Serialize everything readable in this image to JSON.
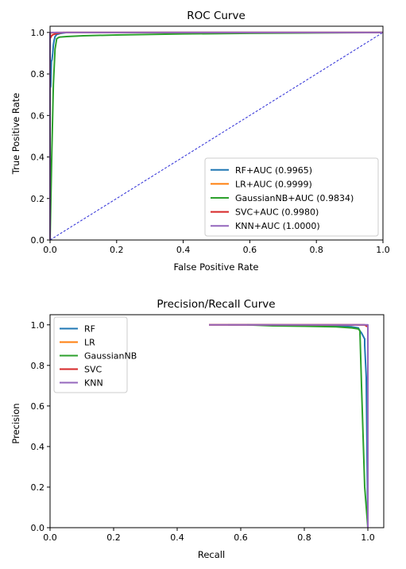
{
  "chart_data": [
    {
      "type": "line",
      "title": "ROC Curve",
      "xlabel": "False Positive Rate",
      "ylabel": "True Positive Rate",
      "xlim": [
        0,
        1
      ],
      "ylim": [
        0,
        1.03
      ],
      "xticks": [
        "0.0",
        "0.2",
        "0.4",
        "0.6",
        "0.8",
        "1.0"
      ],
      "yticks": [
        "0.0",
        "0.2",
        "0.4",
        "0.6",
        "0.8",
        "1.0"
      ],
      "grid": false,
      "legend_position": "lower-right",
      "reference_line": {
        "x": [
          0,
          1
        ],
        "y": [
          0,
          1
        ],
        "color": "#2b2bd6",
        "style": "dashed"
      },
      "series": [
        {
          "name": "RF+AUC (0.9965)",
          "color": "#1f77b4",
          "x": [
            0,
            0,
            0.002,
            0.004,
            0.006,
            0.008,
            0.01,
            0.012,
            0.015,
            0.02,
            0.03,
            0.05,
            0.07,
            1
          ],
          "y": [
            0,
            0.73,
            0.74,
            0.86,
            0.87,
            0.9,
            0.94,
            0.96,
            0.98,
            0.99,
            0.995,
            1.0,
            1.0,
            1.0
          ]
        },
        {
          "name": "LR+AUC (0.9999)",
          "color": "#ff7f0e",
          "x": [
            0,
            0,
            0.002,
            0.02,
            1
          ],
          "y": [
            0,
            0.99,
            0.998,
            1.0,
            1.0
          ]
        },
        {
          "name": "GaussianNB+AUC (0.9834)",
          "color": "#2ca02c",
          "x": [
            0,
            0.005,
            0.01,
            0.015,
            0.02,
            0.025,
            0.03,
            0.05,
            0.1,
            0.2,
            0.4,
            0.6,
            0.8,
            1.0
          ],
          "y": [
            0,
            0.4,
            0.75,
            0.92,
            0.97,
            0.975,
            0.978,
            0.98,
            0.984,
            0.988,
            0.993,
            0.996,
            0.998,
            1.0
          ]
        },
        {
          "name": "SVC+AUC (0.9980)",
          "color": "#d62728",
          "x": [
            0,
            0,
            0.005,
            0.01,
            0.02,
            0.04,
            1
          ],
          "y": [
            0,
            0.97,
            0.985,
            0.99,
            0.995,
            1.0,
            1.0
          ]
        },
        {
          "name": "KNN+AUC (1.0000)",
          "color": "#9467bd",
          "x": [
            0,
            0,
            1
          ],
          "y": [
            0,
            1.0,
            1.0
          ]
        }
      ]
    },
    {
      "type": "line",
      "title": "Precision/Recall Curve",
      "xlabel": "Recall",
      "ylabel": "Precision",
      "xlim": [
        0,
        1.05
      ],
      "ylim": [
        0,
        1.05
      ],
      "xticks": [
        "0.0",
        "0.2",
        "0.4",
        "0.6",
        "0.8",
        "1.0"
      ],
      "yticks": [
        "0.0",
        "0.2",
        "0.4",
        "0.6",
        "0.8",
        "1.0"
      ],
      "grid": false,
      "legend_position": "upper-left",
      "series": [
        {
          "name": "RF",
          "color": "#1f77b4",
          "x": [
            0.56,
            0.7,
            0.85,
            0.95,
            0.97,
            0.975,
            0.98,
            0.99,
            0.99,
            0.995,
            0.995,
            1.0
          ],
          "y": [
            1.0,
            1.0,
            0.998,
            0.99,
            0.985,
            0.97,
            0.96,
            0.93,
            0.9,
            0.74,
            0.73,
            0.0
          ]
        },
        {
          "name": "LR",
          "color": "#ff7f0e",
          "x": [
            0.5,
            0.7,
            0.9,
            0.99,
            1.0,
            1.0
          ],
          "y": [
            1.0,
            1.0,
            1.0,
            0.999,
            0.99,
            0.0
          ]
        },
        {
          "name": "GaussianNB",
          "color": "#2ca02c",
          "x": [
            0.62,
            0.7,
            0.8,
            0.9,
            0.95,
            0.97,
            0.975,
            0.98,
            0.985,
            0.99,
            1.0
          ],
          "y": [
            1.0,
            0.995,
            0.993,
            0.99,
            0.985,
            0.98,
            0.97,
            0.7,
            0.45,
            0.2,
            0.0
          ]
        },
        {
          "name": "SVC",
          "color": "#d62728",
          "x": [
            0.5,
            0.6,
            0.8,
            0.95,
            0.99,
            1.0,
            1.0
          ],
          "y": [
            1.0,
            1.0,
            1.0,
            1.0,
            1.0,
            0.99,
            0.0
          ]
        },
        {
          "name": "KNN",
          "color": "#9467bd",
          "x": [
            0.5,
            0.7,
            0.9,
            1.0,
            1.0
          ],
          "y": [
            1.0,
            1.0,
            1.0,
            1.0,
            0.0
          ]
        }
      ]
    }
  ]
}
